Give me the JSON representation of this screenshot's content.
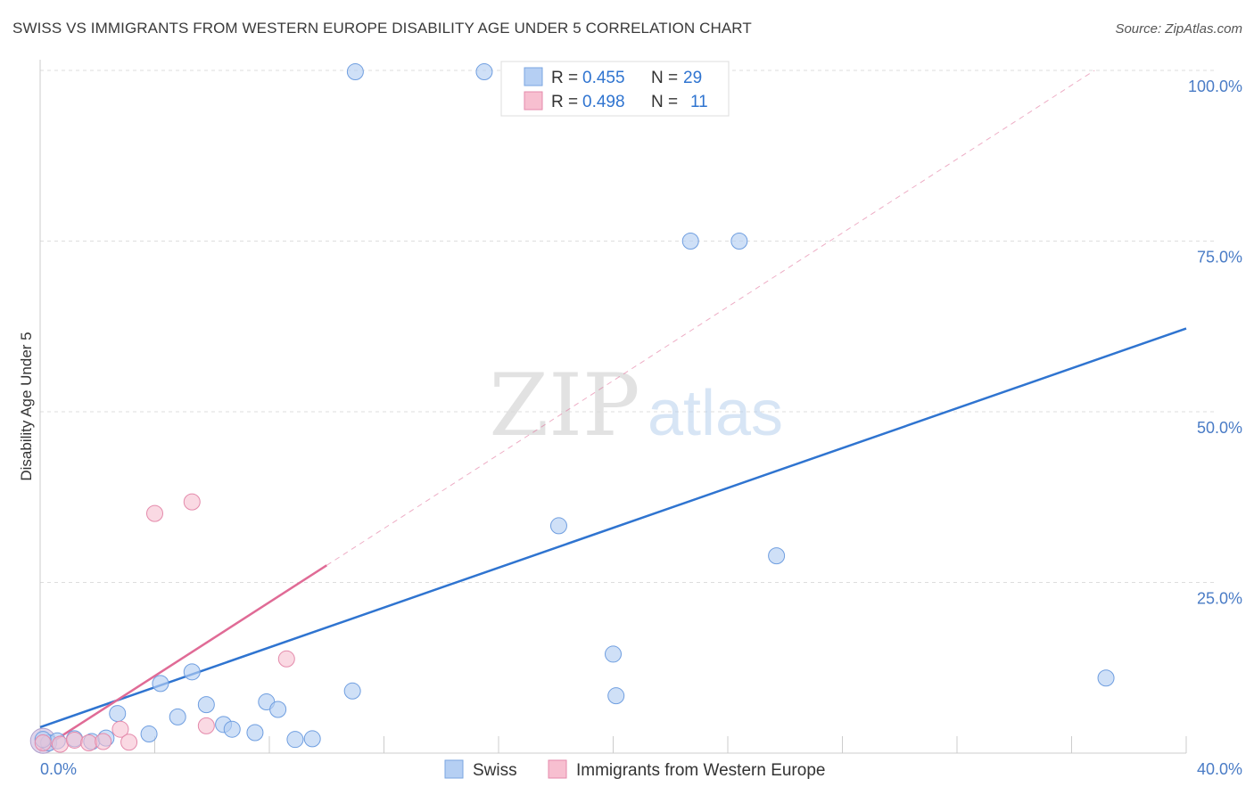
{
  "title": "SWISS VS IMMIGRANTS FROM WESTERN EUROPE DISABILITY AGE UNDER 5 CORRELATION CHART",
  "source": "Source: ZipAtlas.com",
  "watermark": {
    "zip": "ZIP",
    "atlas": "atlas"
  },
  "colors": {
    "swiss": "#2f74d0",
    "swiss_fill": "#b5cff3",
    "immigrants": "#e06b96",
    "immigrants_fill": "#f7bfd0",
    "axis_text": "#4a7cc6"
  },
  "legend": {
    "rows": [
      {
        "r_label": "R =",
        "r_value": "0.455",
        "n_label": "N =",
        "n_value": "29"
      },
      {
        "r_label": "R =",
        "r_value": "0.498",
        "n_label": "N =",
        "n_value": "11"
      }
    ]
  },
  "bottom_legend": {
    "swiss": "Swiss",
    "immigrants": "Immigrants from Western Europe"
  },
  "chart_data": {
    "type": "scatter",
    "title": "SWISS VS IMMIGRANTS FROM WESTERN EUROPE DISABILITY AGE UNDER 5 CORRELATION CHART",
    "xlabel": "",
    "ylabel": "Disability Age Under 5",
    "xlim": [
      0,
      40
    ],
    "ylim": [
      0,
      100
    ],
    "x_tick_labels": [
      "0.0%",
      "40.0%"
    ],
    "y_tick_labels": [
      "100.0%",
      "75.0%",
      "50.0%",
      "25.0%"
    ],
    "y_ticks": [
      100,
      75,
      50,
      25
    ],
    "x_minor_ticks": [
      4,
      8,
      12,
      16,
      20,
      24,
      28,
      32,
      36,
      40
    ],
    "grid": true,
    "series": [
      {
        "name": "Swiss",
        "r": 0.455,
        "n": 29,
        "points": [
          [
            0.3,
            1.5
          ],
          [
            0.6,
            1.8
          ],
          [
            1.2,
            2.1
          ],
          [
            1.8,
            1.7
          ],
          [
            2.3,
            2.2
          ],
          [
            2.7,
            5.8
          ],
          [
            3.8,
            2.8
          ],
          [
            4.2,
            10.2
          ],
          [
            4.8,
            5.3
          ],
          [
            5.3,
            11.9
          ],
          [
            5.8,
            7.1
          ],
          [
            6.4,
            4.2
          ],
          [
            6.7,
            3.5
          ],
          [
            7.5,
            3.0
          ],
          [
            7.9,
            7.5
          ],
          [
            8.3,
            6.4
          ],
          [
            8.9,
            2.0
          ],
          [
            9.5,
            2.1
          ],
          [
            10.9,
            9.1
          ],
          [
            11.0,
            99.8
          ],
          [
            15.5,
            99.8
          ],
          [
            18.1,
            33.3
          ],
          [
            20.0,
            14.5
          ],
          [
            20.1,
            8.4
          ],
          [
            22.7,
            75.0
          ],
          [
            24.4,
            75.0
          ],
          [
            25.7,
            28.9
          ],
          [
            37.2,
            11.0
          ],
          [
            0.1,
            2.0
          ]
        ],
        "trend": {
          "x": [
            0,
            40
          ],
          "y": [
            3.8,
            62.2
          ]
        }
      },
      {
        "name": "Immigrants from Western Europe",
        "r": 0.498,
        "n": 11,
        "points": [
          [
            0.1,
            1.5
          ],
          [
            0.7,
            1.3
          ],
          [
            1.2,
            1.9
          ],
          [
            1.7,
            1.5
          ],
          [
            2.2,
            1.7
          ],
          [
            2.8,
            3.5
          ],
          [
            3.1,
            1.6
          ],
          [
            4.0,
            35.1
          ],
          [
            5.3,
            36.8
          ],
          [
            5.8,
            4.0
          ],
          [
            8.6,
            13.8
          ]
        ],
        "trend": {
          "x": [
            0,
            10
          ],
          "y": [
            0.5,
            27.5
          ]
        },
        "trend_extended": {
          "x": [
            10,
            36.8
          ],
          "y": [
            27.5,
            100
          ]
        }
      }
    ]
  }
}
